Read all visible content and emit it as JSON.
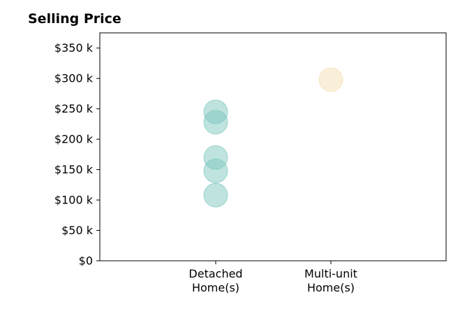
{
  "chart_data": {
    "type": "scatter",
    "title": "Selling Price",
    "xlabel": "",
    "ylabel": "",
    "categories": [
      [
        "Detached",
        "Home(s)"
      ],
      [
        "Multi-unit",
        "Home(s)"
      ]
    ],
    "series": [
      {
        "category_index": 0,
        "color": "#7fc8c0",
        "values": [
          245000,
          228000,
          170000,
          148000,
          108000
        ]
      },
      {
        "category_index": 1,
        "color": "#f5dfb3",
        "values": [
          298000
        ]
      }
    ],
    "ylim": [
      0,
      375000
    ],
    "yticks": [
      0,
      50000,
      100000,
      150000,
      200000,
      250000,
      300000,
      350000
    ],
    "ytick_labels": [
      "$0",
      "$50 k",
      "$100 k",
      "$150 k",
      "$200 k",
      "$250 k",
      "$300 k",
      "$350 k"
    ],
    "grid": false,
    "legend": "none"
  }
}
